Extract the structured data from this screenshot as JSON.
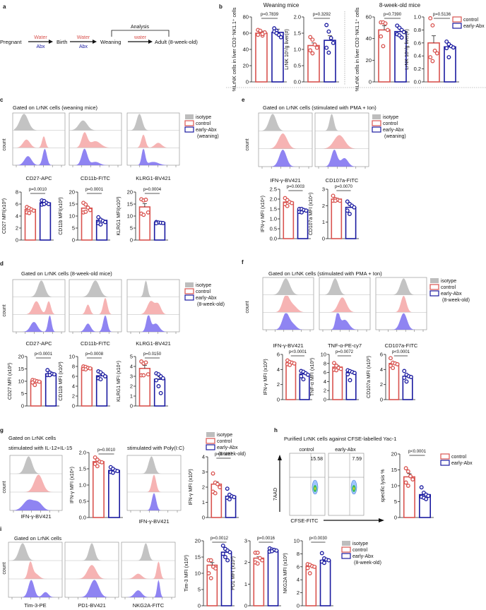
{
  "colors": {
    "control": "#d9534f",
    "control_fill": "#f4a6a6",
    "abx": "#1a1aa0",
    "abx_fill": "#7b6ff0",
    "isotype": "#bdbdbd"
  },
  "panel_a": {
    "letter": "a",
    "stages": [
      "Pregnant",
      "Birth",
      "Weaning",
      "Adult (8-week-old)"
    ],
    "arrows": [
      {
        "top": "Water",
        "bottom": "Abx"
      },
      {
        "top": "Water",
        "bottom": "Abx"
      },
      {
        "top": "water",
        "bottom": ""
      }
    ],
    "bracket_label": "Analysis"
  },
  "legend_common": {
    "isotype": "isotype",
    "control": "control",
    "abx": "early-Abx",
    "weaning": "(weaning)",
    "adult": "(8-week-old)"
  },
  "chart_data": [
    {
      "id": "b1",
      "panel": "b",
      "group_title": "Weaning mice",
      "type": "bar",
      "categories": [
        "control",
        "early-Abx"
      ],
      "ylabel": "%LrNK cells in liver CD3⁻NK1.1⁺ cells",
      "ylim": [
        0,
        80
      ],
      "ticks": [
        0,
        20,
        40,
        60,
        80
      ],
      "means": [
        60,
        61
      ],
      "sem": [
        2.5,
        4
      ],
      "points": [
        [
          58,
          62,
          57,
          61,
          64,
          63,
          59
        ],
        [
          66,
          63,
          58,
          55,
          62,
          60
        ]
      ],
      "p": "p=0.7839"
    },
    {
      "id": "b2",
      "panel": "b",
      "type": "bar",
      "categories": [
        "control",
        "early-Abx"
      ],
      "ylabel": "LrNK 10⁵/g liver(#)",
      "ylim": [
        0,
        2.0
      ],
      "ticks": [
        "0.0",
        "0.5",
        "1.0",
        "1.5",
        "2.0"
      ],
      "means": [
        1.12,
        1.28
      ],
      "sem": [
        0.08,
        0.14
      ],
      "points": [
        [
          1.38,
          1.3,
          1.15,
          1.05,
          0.97,
          0.88
        ],
        [
          1.75,
          1.55,
          1.35,
          1.2,
          1.05,
          0.9
        ]
      ],
      "p": "p=0.3292"
    },
    {
      "id": "b3",
      "panel": "b",
      "group_title": "8-week-old mice",
      "type": "bar",
      "categories": [
        "control",
        "early-Abx"
      ],
      "ylabel": "%LrNK cells in liver CD3⁻NK1.1⁺ cells",
      "ylim": [
        0,
        60
      ],
      "ticks": [
        0,
        20,
        40,
        60
      ],
      "means": [
        48,
        46.5
      ],
      "sem": [
        4,
        2
      ],
      "points": [
        [
          55,
          55,
          54,
          48,
          42,
          33
        ],
        [
          52,
          50,
          48,
          46,
          44,
          43,
          41
        ]
      ],
      "p": "p=0.7390"
    },
    {
      "id": "b4",
      "panel": "b",
      "type": "bar",
      "categories": [
        "control",
        "early-Abx"
      ],
      "ylabel": "LrNK 10⁵/g liver(#)",
      "ylim": [
        0,
        1.0
      ],
      "ticks": [
        "0.0",
        "0.2",
        "0.4",
        "0.6",
        "0.8",
        "1.0"
      ],
      "means": [
        0.6,
        0.54
      ],
      "sem": [
        0.11,
        0.03
      ],
      "points": [
        [
          0.98,
          0.87,
          0.48,
          0.44,
          0.38,
          0.32
        ],
        [
          0.62,
          0.58,
          0.55,
          0.53,
          0.52,
          0.38
        ]
      ],
      "p": "p=0.5136",
      "legend": [
        "control",
        "early-Abx"
      ]
    },
    {
      "id": "c1",
      "panel": "c",
      "type": "bar",
      "categories": [
        "control",
        "early-Abx"
      ],
      "ylabel": "CD27 MFI(x10³)",
      "ylim": [
        0,
        8
      ],
      "ticks": [
        0,
        2,
        4,
        6,
        8
      ],
      "means": [
        5.1,
        6.2
      ],
      "sem": [
        0.2,
        0.15
      ],
      "points": [
        [
          5.5,
          5.3,
          5.1,
          4.9,
          4.6,
          4.5
        ],
        [
          6.6,
          6.5,
          6.2,
          6.0,
          5.9,
          6.0
        ]
      ],
      "p": "p=0.0010"
    },
    {
      "id": "c2",
      "panel": "c",
      "type": "bar",
      "categories": [
        "control",
        "early-Abx"
      ],
      "ylabel": "CD11b MFI(x10³)",
      "ylim": [
        0,
        20
      ],
      "ticks": [
        0,
        5,
        10,
        15,
        20
      ],
      "means": [
        13.3,
        8.2
      ],
      "sem": [
        0.9,
        0.4
      ],
      "points": [
        [
          15.5,
          14.8,
          13.5,
          12.5,
          11.5,
          11.8
        ],
        [
          9.5,
          8.5,
          8.0,
          7.5,
          7.0,
          6.5
        ]
      ],
      "p": "p=0.0001"
    },
    {
      "id": "c3",
      "panel": "c",
      "type": "bar",
      "categories": [
        "control",
        "early-Abx"
      ],
      "ylabel": "KLRG1 MFI(x10³)",
      "ylim": [
        0,
        20
      ],
      "ticks": [
        0,
        5,
        10,
        15,
        20
      ],
      "means": [
        13.8,
        7.3
      ],
      "sem": [
        1.4,
        0.2
      ],
      "points": [
        [
          17,
          16.5,
          16.8,
          11.5,
          11,
          10.5
        ],
        [
          7.5,
          7.3,
          7.2,
          7.1,
          7.0
        ]
      ],
      "p": "p=0.0004"
    },
    {
      "id": "d1",
      "panel": "d",
      "type": "bar",
      "categories": [
        "control",
        "early-Abx"
      ],
      "ylabel": "CD27 MFI (x10³)",
      "ylim": [
        0,
        20
      ],
      "ticks": [
        0,
        5,
        10,
        15,
        20
      ],
      "means": [
        10,
        13
      ],
      "sem": [
        0.4,
        0.3
      ],
      "points": [
        [
          10.5,
          10.3,
          10,
          9.8,
          9.5,
          8.5
        ],
        [
          14.5,
          13.5,
          13,
          12.8,
          12.5,
          12.5
        ]
      ],
      "p": "p<0.0001"
    },
    {
      "id": "d2",
      "panel": "d",
      "type": "bar",
      "categories": [
        "control",
        "early-Abx"
      ],
      "ylabel": "CD11b MFI (x10³)",
      "ylim": [
        0,
        10
      ],
      "ticks": [
        0,
        2,
        4,
        6,
        8,
        10
      ],
      "means": [
        7.7,
        6.1
      ],
      "sem": [
        0.15,
        0.3
      ],
      "points": [
        [
          8,
          7.9,
          7.7,
          7.6,
          7.5,
          7.4
        ],
        [
          7.0,
          6.8,
          6.4,
          6.0,
          5.6,
          5.4
        ]
      ],
      "p": "p=0.0008"
    },
    {
      "id": "d3",
      "panel": "d",
      "type": "bar",
      "categories": [
        "control",
        "early-Abx"
      ],
      "ylabel": "KLRG1 MFI (x10⁴)",
      "ylim": [
        0,
        5
      ],
      "ticks": [
        0,
        1,
        2,
        3,
        4,
        5
      ],
      "means": [
        3.8,
        2.7
      ],
      "sem": [
        0.3,
        0.25
      ],
      "points": [
        [
          4.5,
          4.3,
          4.4,
          3.2,
          3.1,
          3.1
        ],
        [
          3.3,
          3.2,
          3.0,
          2.8,
          2.6,
          2.0,
          1.3
        ]
      ],
      "p": "p=0.0150"
    },
    {
      "id": "e1",
      "panel": "e",
      "type": "bar",
      "categories": [
        "control",
        "early-Abx"
      ],
      "ylabel": "IFN-γ MFI (x10⁴)",
      "ylim": [
        0,
        2.5
      ],
      "ticks": [
        "0.0",
        "0.5",
        "1.0",
        "1.5",
        "2.0",
        "2.5"
      ],
      "means": [
        1.85,
        1.45
      ],
      "sem": [
        0.06,
        0.03
      ],
      "points": [
        [
          2.05,
          1.95,
          1.85,
          1.8,
          1.75,
          1.65
        ],
        [
          1.5,
          1.5,
          1.45,
          1.42,
          1.35,
          1.33
        ]
      ],
      "p": "p=0.0003"
    },
    {
      "id": "e2",
      "panel": "e",
      "type": "bar",
      "categories": [
        "control",
        "early-Abx"
      ],
      "ylabel": "CD107a MFI (x10⁴)",
      "ylim": [
        0,
        3
      ],
      "ticks": [
        0,
        1,
        2,
        3
      ],
      "means": [
        2.4,
        1.9
      ],
      "sem": [
        0.06,
        0.12
      ],
      "points": [
        [
          2.6,
          2.4,
          2.35,
          2.3,
          2.3,
          2.3
        ],
        [
          2.25,
          2.1,
          2.0,
          1.9,
          1.7,
          1.5
        ]
      ],
      "p": "p=0.0070"
    },
    {
      "id": "f1",
      "panel": "f",
      "type": "bar",
      "categories": [
        "control",
        "early-Abx"
      ],
      "ylabel": "IFN-γ MFI (x10³)",
      "ylim": [
        0,
        6
      ],
      "ticks": [
        0,
        2,
        4,
        6
      ],
      "means": [
        4.9,
        3.4
      ],
      "sem": [
        0.1,
        0.15
      ],
      "points": [
        [
          5.2,
          5.0,
          4.9,
          4.8,
          4.7,
          4.6
        ],
        [
          3.8,
          3.7,
          3.5,
          3.3,
          3.1,
          2.7
        ]
      ],
      "p": "p<0.0001"
    },
    {
      "id": "f2",
      "panel": "f",
      "type": "bar",
      "categories": [
        "control",
        "early-Abx"
      ],
      "ylabel": "TNF-α MFI (x10³)",
      "ylim": [
        0,
        10
      ],
      "ticks": [
        0,
        2,
        4,
        6,
        8,
        10
      ],
      "means": [
        7.2,
        6.0
      ],
      "sem": [
        0.3,
        0.2
      ],
      "points": [
        [
          8.1,
          7.5,
          7.0,
          6.8,
          6.6,
          6.5
        ],
        [
          6.5,
          6.3,
          6.1,
          5.9,
          5.6,
          4.3
        ]
      ],
      "p": "p=0.0072"
    },
    {
      "id": "f3",
      "panel": "f",
      "type": "bar",
      "categories": [
        "control",
        "early-Abx"
      ],
      "ylabel": "CD107a MFI (x10³)",
      "ylim": [
        0,
        6
      ],
      "ticks": [
        0,
        2,
        4,
        6
      ],
      "means": [
        4.8,
        3.1
      ],
      "sem": [
        0.2,
        0.2
      ],
      "points": [
        [
          5.5,
          4.9,
          4.8,
          4.7,
          4.5,
          4.2
        ],
        [
          3.8,
          3.3,
          3.1,
          3.0,
          2.9,
          2.4
        ]
      ],
      "p": "p<0.0001"
    },
    {
      "id": "g1",
      "panel": "g",
      "type": "bar",
      "categories": [
        "control",
        "early-Abx"
      ],
      "ylabel": "IFN-γ MFI (x10⁴)",
      "ylim": [
        0,
        2.0
      ],
      "ticks": [
        "0.0",
        "0.5",
        "1.0",
        "1.5",
        "2.0"
      ],
      "means": [
        1.72,
        1.45
      ],
      "sem": [
        0.04,
        0.02
      ],
      "points": [
        [
          1.85,
          1.78,
          1.72,
          1.7,
          1.65,
          1.58
        ],
        [
          1.55,
          1.5,
          1.45,
          1.43,
          1.4,
          1.38
        ]
      ],
      "p": "p=0.0010"
    },
    {
      "id": "g2",
      "panel": "g",
      "type": "bar",
      "categories": [
        "control",
        "early-Abx"
      ],
      "ylabel": "IFN-γ MFI (x10³)",
      "ylim": [
        0,
        4
      ],
      "ticks": [
        0,
        1,
        2,
        3,
        4
      ],
      "means": [
        2.2,
        1.4
      ],
      "sem": [
        0.15,
        0.1
      ],
      "points": [
        [
          2.9,
          2.3,
          2.2,
          2.0,
          1.7,
          1.6
        ],
        [
          1.9,
          1.5,
          1.4,
          1.35,
          1.3,
          1.2
        ]
      ],
      "p": "p=0.0337"
    },
    {
      "id": "h1",
      "panel": "h",
      "type": "bar",
      "categories": [
        "control",
        "early-Abx"
      ],
      "ylabel": "specific lysis %",
      "ylim": [
        0,
        20
      ],
      "ticks": [
        0,
        5,
        10,
        15,
        20
      ],
      "means": [
        12.8,
        7.2
      ],
      "sem": [
        1.0,
        0.5
      ],
      "points": [
        [
          15.5,
          14.5,
          13,
          12,
          11,
          10
        ],
        [
          9.5,
          7.8,
          7.2,
          6.8,
          6.5,
          6.2,
          5.8
        ]
      ],
      "p": "p<0.0001",
      "legend": [
        "control",
        "early-Abx",
        "(8-week-old)"
      ]
    },
    {
      "id": "i1",
      "panel": "i",
      "type": "bar",
      "categories": [
        "control",
        "early-Abx"
      ],
      "ylabel": "Tim-3 MFI (x10³)",
      "ylim": [
        0,
        20
      ],
      "ticks": [
        0,
        5,
        10,
        15,
        20
      ],
      "means": [
        12.5,
        16.5
      ],
      "sem": [
        0.8,
        0.5
      ],
      "points": [
        [
          14,
          14,
          12,
          11.5,
          10,
          8.5
        ],
        [
          18.5,
          17.5,
          17,
          16.5,
          16,
          15,
          14
        ]
      ],
      "p": "p=0.0012"
    },
    {
      "id": "i2",
      "panel": "i",
      "type": "bar",
      "categories": [
        "control",
        "early-Abx"
      ],
      "ylabel": "PD1 MFI (x10³)",
      "ylim": [
        0,
        3
      ],
      "ticks": [
        0,
        1,
        2,
        3
      ],
      "means": [
        2.2,
        2.55
      ],
      "sem": [
        0.06,
        0.03
      ],
      "points": [
        [
          2.45,
          2.45,
          2.2,
          2.1,
          2.0,
          1.95
        ],
        [
          2.65,
          2.6,
          2.58,
          2.55,
          2.5,
          2.52
        ]
      ],
      "p": "p=0.0016"
    },
    {
      "id": "i3",
      "panel": "i",
      "type": "bar",
      "categories": [
        "control",
        "early-Abx"
      ],
      "ylabel": "NKG2A MFI (x10³)",
      "ylim": [
        0,
        10
      ],
      "ticks": [
        0,
        2,
        4,
        6,
        8,
        10
      ],
      "means": [
        6.1,
        7.0
      ],
      "sem": [
        0.15,
        0.2
      ],
      "points": [
        [
          6.4,
          6.3,
          6.1,
          6.0,
          5.8,
          5.0
        ],
        [
          8.1,
          7.3,
          7.1,
          7.0,
          6.8,
          6.6
        ]
      ],
      "p": "p<0.0030"
    }
  ],
  "histograms": {
    "count_label": "count",
    "c": {
      "letter": "c",
      "title": "Gated on LrNK cells (weaning mice)",
      "markers": [
        "CD27-APC",
        "CD11b-FITC",
        "KLRG1-BV421"
      ],
      "legend_suffix": "(weaning)"
    },
    "d": {
      "letter": "d",
      "title": "Gated on LrNK cells (8-week-old mice)",
      "markers": [
        "CD27-APC",
        "CD11b-FITC",
        "KLRG1-BV421"
      ],
      "legend_suffix": "(8-week-old)"
    },
    "e": {
      "letter": "e",
      "title": "Gated on LrNK cells (stimulated with PMA + Ion)",
      "markers": [
        "IFN-γ-BV421",
        "CD107a-FITC"
      ],
      "legend_suffix": "(weaning)"
    },
    "f": {
      "letter": "f",
      "title": "Gated on LrNK cells (stimulated with PMA + Ion)",
      "markers": [
        "IFN-γ-BV421",
        "TNF-α-PE-cy7",
        "CD107a-FITC"
      ],
      "legend_suffix": "(8-week-old)"
    },
    "g": {
      "letter": "g",
      "title": "Gated on LrNK cells",
      "sub1": "stimulated with IL-12+IL-15",
      "sub2": "stimulated with Poly(I:C)",
      "markers": [
        "IFN-γ-BV421",
        "IFN-γ-BV421"
      ],
      "legend_suffix": "(8-week-old)"
    },
    "i": {
      "letter": "i",
      "title": "Gated on LrNK cells",
      "markers": [
        "Tim-3-PE",
        "PD1-BV421",
        "NKG2A-FITC"
      ],
      "legend_suffix": "(8-week-old)"
    }
  },
  "panel_h": {
    "letter": "h",
    "title": "Purified LrNK cells against CFSE-labelled Yac-1",
    "plots": [
      {
        "label": "control",
        "value": "15.58"
      },
      {
        "label": "early-Abx",
        "value": "7.59"
      }
    ],
    "xlabel": "CFSE-FITC",
    "ylabel": "7AAD"
  },
  "panel_b": {
    "letter": "b"
  }
}
